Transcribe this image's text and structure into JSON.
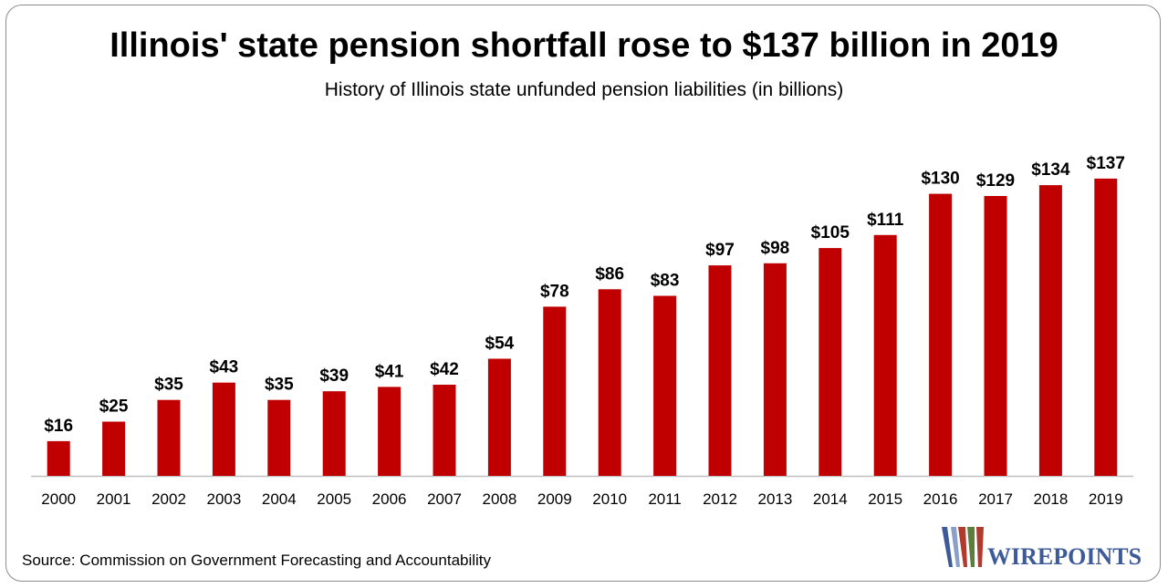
{
  "chart_data": {
    "type": "bar",
    "title": "Illinois' state pension shortfall rose to $137 billion in 2019",
    "subtitle": "History of Illinois state unfunded pension liabilities (in billions)",
    "categories": [
      "2000",
      "2001",
      "2002",
      "2003",
      "2004",
      "2005",
      "2006",
      "2007",
      "2008",
      "2009",
      "2010",
      "2011",
      "2012",
      "2013",
      "2014",
      "2015",
      "2016",
      "2017",
      "2018",
      "2019"
    ],
    "values": [
      16,
      25,
      35,
      43,
      35,
      39,
      41,
      42,
      54,
      78,
      86,
      83,
      97,
      98,
      105,
      111,
      130,
      129,
      134,
      137
    ],
    "data_labels": [
      "$16",
      "$25",
      "$35",
      "$43",
      "$35",
      "$39",
      "$41",
      "$42",
      "$54",
      "$78",
      "$86",
      "$83",
      "$97",
      "$98",
      "$105",
      "$111",
      "$130",
      "$129",
      "$134",
      "$137"
    ],
    "xlabel": "",
    "ylabel": "",
    "ylim": [
      0,
      145
    ],
    "grid": false,
    "legend": "none",
    "bar_color": "#c00000"
  },
  "footer": {
    "source": "Source: Commission on Government Forecasting and Accountability",
    "logo_text": "WIREPOINTS"
  },
  "colors": {
    "logo_blue": "#3d5a99",
    "logo_red": "#b03a2e",
    "logo_green": "#5b7f3a"
  }
}
